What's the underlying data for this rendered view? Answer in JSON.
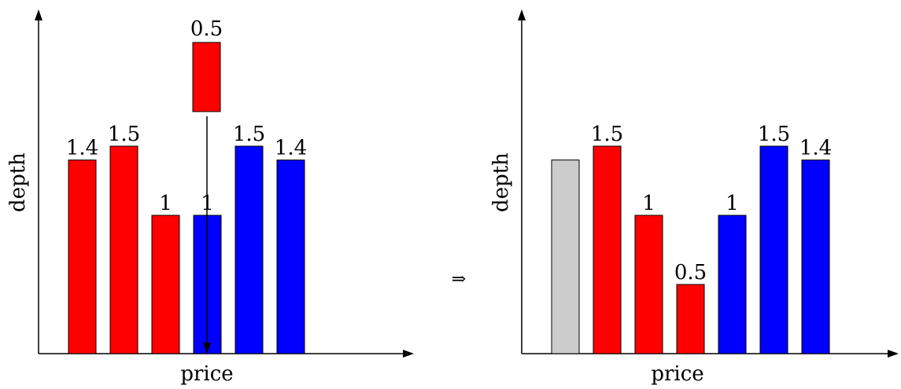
{
  "colors": {
    "ask": "#ff0000",
    "bid": "#0000ff",
    "removed": "#cccccc",
    "outline": "#000000"
  },
  "left_panel": {
    "xlabel": "price",
    "ylabel": "depth",
    "bars": [
      {
        "side": "ask",
        "depth": 1.4,
        "label": "1.4"
      },
      {
        "side": "ask",
        "depth": 1.5,
        "label": "1.5"
      },
      {
        "side": "ask",
        "depth": 1.0,
        "label": "1"
      },
      {
        "side": "bid",
        "depth": 1.0,
        "label": "1"
      },
      {
        "side": "bid",
        "depth": 1.5,
        "label": "1.5"
      },
      {
        "side": "bid",
        "depth": 1.4,
        "label": "1.4"
      }
    ],
    "incoming_order": {
      "side": "ask",
      "depth": 0.5,
      "label": "0.5"
    }
  },
  "transition_symbol": "⇒",
  "right_panel": {
    "xlabel": "price",
    "ylabel": "depth",
    "bars": [
      {
        "side": "removed",
        "depth": 1.4,
        "label": ""
      },
      {
        "side": "ask",
        "depth": 1.5,
        "label": "1.5"
      },
      {
        "side": "ask",
        "depth": 1.0,
        "label": "1"
      },
      {
        "side": "ask",
        "depth": 0.5,
        "label": "0.5"
      },
      {
        "side": "bid",
        "depth": 1.0,
        "label": "1"
      },
      {
        "side": "bid",
        "depth": 1.5,
        "label": "1.5"
      },
      {
        "side": "bid",
        "depth": 1.4,
        "label": "1.4"
      }
    ]
  }
}
